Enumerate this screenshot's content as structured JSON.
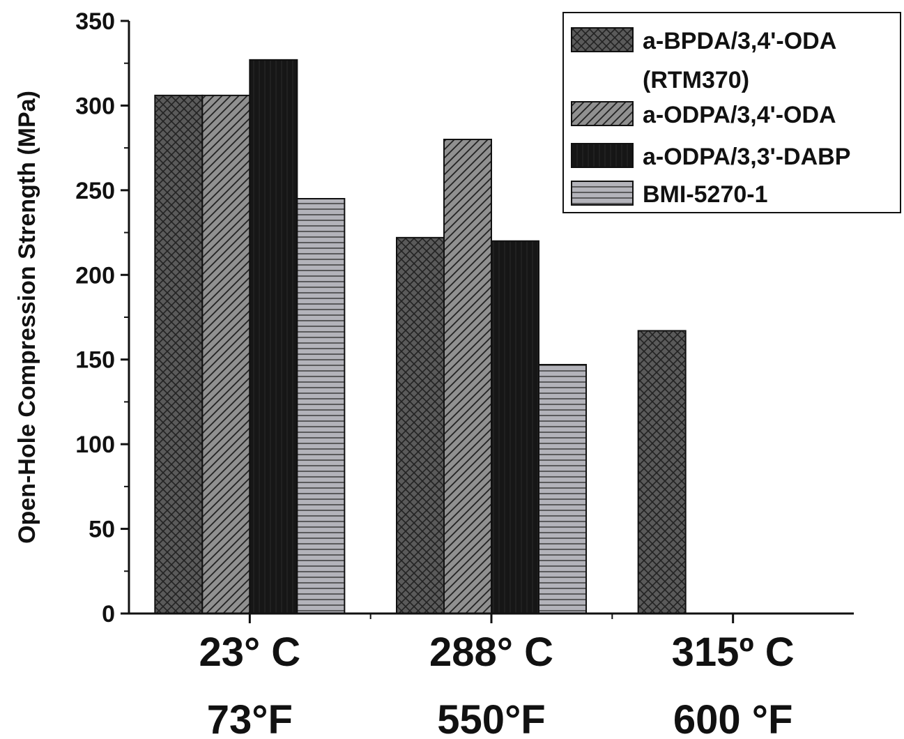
{
  "chart_data": {
    "type": "bar",
    "ylabel": "Open-Hole Compression Strength (MPa)",
    "xlabel": "",
    "ylim": [
      0,
      350
    ],
    "yticks": [
      0,
      50,
      100,
      150,
      200,
      250,
      300,
      350
    ],
    "categories": [
      {
        "line1": "23° C",
        "line2": "73°F"
      },
      {
        "line1": "288° C",
        "line2": "550°F"
      },
      {
        "line1": "315º C",
        "line2": "600 °F"
      }
    ],
    "series": [
      {
        "name": "a-BPDA/3,4'-ODA",
        "name_line2": "(RTM370)",
        "pattern": "crosshatch",
        "color": "#555555",
        "values": [
          306,
          222,
          167
        ]
      },
      {
        "name": "a-ODPA/3,4'-ODA",
        "pattern": "diagonal",
        "color": "#8c8c8c",
        "values": [
          306,
          280,
          null
        ]
      },
      {
        "name": "a-ODPA/3,3'-DABP",
        "pattern": "solid-dark",
        "color": "#141414",
        "values": [
          327,
          220,
          null
        ]
      },
      {
        "name": "BMI-5270-1",
        "pattern": "horizontal",
        "color": "#a9a9b0",
        "values": [
          245,
          147,
          null
        ]
      }
    ],
    "grid": false,
    "legend_position": "top-right"
  }
}
